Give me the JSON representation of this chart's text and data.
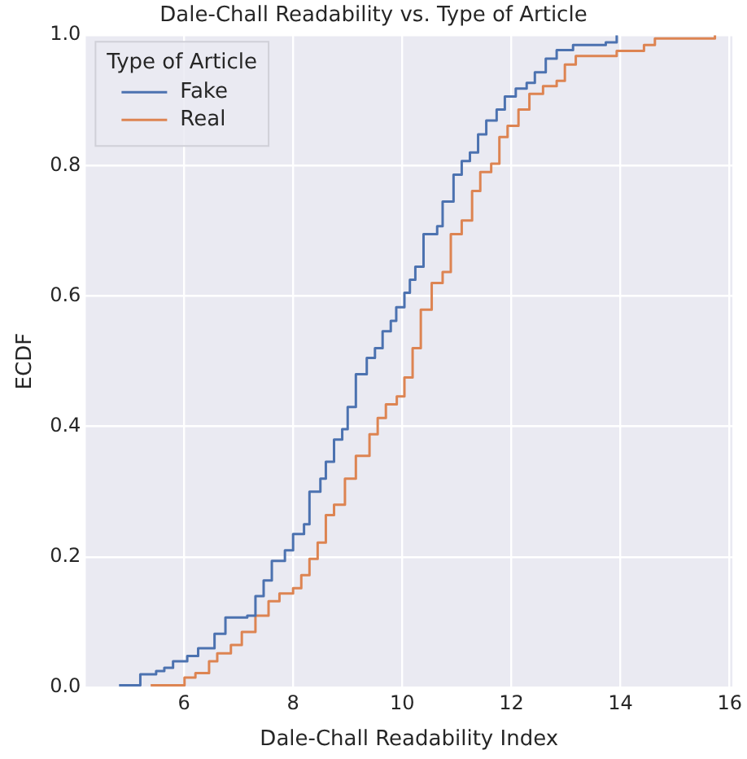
{
  "chart_data": {
    "type": "step",
    "title": "Dale-Chall Readability vs. Type of Article",
    "xlabel": "Dale-Chall Readability Index",
    "ylabel": "ECDF",
    "legend_title": "Type of Article",
    "legend": "top left",
    "grid": true,
    "xlim": [
      4.2,
      16.05
    ],
    "xticks": [
      6,
      8,
      10,
      12,
      14,
      16
    ],
    "ylim": [
      0,
      1
    ],
    "yticks": [
      {
        "value": 0,
        "label": "0.0"
      },
      {
        "value": 0.2,
        "label": "0.2"
      },
      {
        "value": 0.4,
        "label": "0.4"
      },
      {
        "value": 0.6,
        "label": "0.6"
      },
      {
        "value": 0.8,
        "label": "0.8"
      },
      {
        "value": 1,
        "label": "1.0"
      }
    ],
    "series": [
      {
        "name": "Fake",
        "color": "#4c72b0",
        "x": [
          4.81,
          5.2,
          5.49,
          5.64,
          5.8,
          6.06,
          6.26,
          6.56,
          6.76,
          7.16,
          7.31,
          7.46,
          7.61,
          7.85,
          8.0,
          8.2,
          8.3,
          8.5,
          8.6,
          8.75,
          8.9,
          9.0,
          9.15,
          9.35,
          9.5,
          9.64,
          9.79,
          9.89,
          10.04,
          10.14,
          10.24,
          10.39,
          10.64,
          10.74,
          10.94,
          11.09,
          11.24,
          11.39,
          11.54,
          11.73,
          11.88,
          12.08,
          12.28,
          12.43,
          12.63,
          12.83,
          13.13,
          13.73,
          13.93
        ],
        "values": [
          0.003,
          0.02,
          0.025,
          0.03,
          0.04,
          0.048,
          0.06,
          0.082,
          0.107,
          0.11,
          0.14,
          0.164,
          0.194,
          0.21,
          0.235,
          0.25,
          0.3,
          0.32,
          0.346,
          0.38,
          0.396,
          0.43,
          0.48,
          0.505,
          0.52,
          0.546,
          0.562,
          0.583,
          0.605,
          0.625,
          0.645,
          0.695,
          0.707,
          0.745,
          0.786,
          0.807,
          0.82,
          0.848,
          0.869,
          0.886,
          0.906,
          0.918,
          0.927,
          0.943,
          0.964,
          0.977,
          0.985,
          0.989,
          1.0
        ]
      },
      {
        "name": "Real",
        "color": "#dd8452",
        "x": [
          5.39,
          6.01,
          6.21,
          6.46,
          6.61,
          6.86,
          7.06,
          7.31,
          7.55,
          7.75,
          8.0,
          8.15,
          8.3,
          8.45,
          8.6,
          8.75,
          8.95,
          9.15,
          9.4,
          9.55,
          9.7,
          9.9,
          10.04,
          10.19,
          10.34,
          10.54,
          10.74,
          10.89,
          11.09,
          11.28,
          11.43,
          11.63,
          11.78,
          11.93,
          12.13,
          12.33,
          12.58,
          12.83,
          12.98,
          13.18,
          13.93,
          14.43,
          14.63,
          15.73
        ],
        "values": [
          0.003,
          0.015,
          0.022,
          0.04,
          0.052,
          0.065,
          0.085,
          0.11,
          0.132,
          0.144,
          0.152,
          0.172,
          0.197,
          0.222,
          0.264,
          0.28,
          0.32,
          0.355,
          0.388,
          0.413,
          0.434,
          0.446,
          0.475,
          0.52,
          0.579,
          0.62,
          0.637,
          0.695,
          0.716,
          0.761,
          0.79,
          0.803,
          0.844,
          0.861,
          0.886,
          0.91,
          0.922,
          0.93,
          0.955,
          0.968,
          0.976,
          0.985,
          0.995,
          1.0
        ]
      }
    ]
  }
}
